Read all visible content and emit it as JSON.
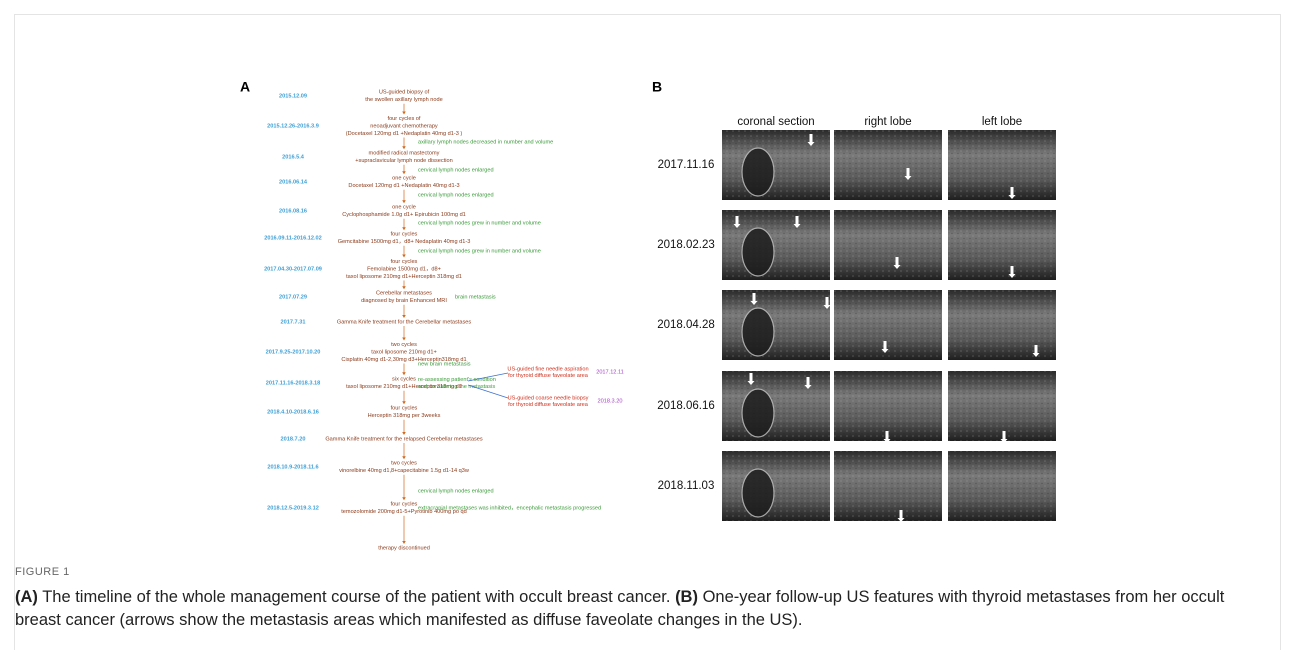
{
  "panel_a": {
    "label": "A",
    "entries": [
      {
        "date": "2015.12.09",
        "lines": [
          "US-guided biopsy of",
          "the swollen axillary lymph node"
        ]
      },
      {
        "date": "2015.12.26-2016.3.9",
        "lines": [
          "four cycles of",
          "neoadjuvant chemotherapy",
          "(Docetaxel 120mg d1 +Nedaplatin 40mg d1-3 )"
        ],
        "note": [
          "axillary lymph nodes decreased in number and volume"
        ]
      },
      {
        "date": "2016.5.4",
        "lines": [
          "modified radical mastectomy",
          "+supraclavicular lymph node dissection"
        ],
        "note": [
          "cervical lymph nodes enlarged"
        ]
      },
      {
        "date": "2016.06.14",
        "lines": [
          "one cycle",
          "Docetaxel 120mg d1 +Nedaplatin 40mg d1-3"
        ],
        "note": [
          "cervical lymph nodes enlarged"
        ]
      },
      {
        "date": "2016.08.16",
        "lines": [
          "one cycle",
          "Cyclophosphamide 1.0g d1+ Epirubicin 100mg d1"
        ],
        "note": [
          "cervical lymph nodes grew in number and volume"
        ]
      },
      {
        "date": "2016.09.11-2016.12.02",
        "lines": [
          "four cycles",
          "Gemcitabine 1500mg d1，d8+ Nedaplatin 40mg d1-3"
        ],
        "note": [
          "cervical lymph nodes grew in number and volume"
        ]
      },
      {
        "date": "2017.04.30-2017.07.09",
        "lines": [
          "four cycles",
          "Femolabine 1500mg d1，d8+",
          "taxol liposome 210mg d1+Herceptin  318mg d1"
        ]
      },
      {
        "date": "2017.07.29",
        "lines": [
          "Cerebellar metastases",
          "diagnosed by brain Enhanced MRI"
        ],
        "side": "brain metastasis"
      },
      {
        "date": "2017.7.31",
        "lines": [
          "Gamma Knife treatment for the Cerebellar metastases"
        ]
      },
      {
        "date": "2017.9.25-2017.10.20",
        "lines": [
          "two cycles",
          "taxol liposome 210mg d1+",
          "Cisplatin 40mg d1-2,30mg d3+Herceptin318mg d1"
        ],
        "note": [
          "new brain metastasis"
        ]
      },
      {
        "date": "2017.11.16-2018.3.18",
        "lines": [
          "six cycles",
          "taxol liposome 210mg d1+Herceptin 318mg d1"
        ],
        "note": [
          "re-assessing patient's condition",
          "and considering the metastasis"
        ],
        "branches": [
          {
            "lines": [
              "US-guided fine needle aspiration",
              "for thyroid diffuse faveolate area"
            ],
            "date": "2017.12.11"
          },
          {
            "lines": [
              "US-guided coarse needle biopsy",
              "for thyroid diffuse faveolate area"
            ],
            "date": "2018.3.20"
          }
        ]
      },
      {
        "date": "2018.4.10-2018.6.16",
        "lines": [
          "four cycles",
          "Herceptin 318mg per 3weeks"
        ]
      },
      {
        "date": "2018.7.20",
        "lines": [
          "Gamma Knife treatment for the relapsed Cerebellar metastases"
        ]
      },
      {
        "date": "2018.10.9-2018.11.6",
        "lines": [
          "two cycles",
          "vinorelbine 40mg d1,8+capecitabine 1.5g d1-14 q3w"
        ],
        "note": [
          "cervical lymph nodes enlarged"
        ]
      },
      {
        "date": "2018.12.5-2019.3.12",
        "lines": [
          "four cycles",
          "temozolomide 200mg d1-5+Pyrotinib 400mg po qd"
        ],
        "note": [
          "extracranial metastases was inhibited，encephalic metastasis progressed"
        ]
      }
    ],
    "end": "therapy discontinued"
  },
  "panel_b": {
    "label": "B",
    "columns": [
      "coronal section",
      "right lobe",
      "left lobe"
    ],
    "rows": [
      "2017.11.16",
      "2018.02.23",
      "2018.04.28",
      "2018.06.16",
      "2018.11.03"
    ]
  },
  "caption": {
    "figure_label": "FIGURE 1",
    "parts": [
      {
        "tag": "(A)",
        "text": "The timeline of the whole management course of the patient with occult breast cancer."
      },
      {
        "tag": "(B)",
        "text": "One-year follow-up US features with thyroid metastases from her occult breast cancer (arrows show the metastasis areas which manifested as diffuse faveolate changes in the US)."
      }
    ]
  }
}
